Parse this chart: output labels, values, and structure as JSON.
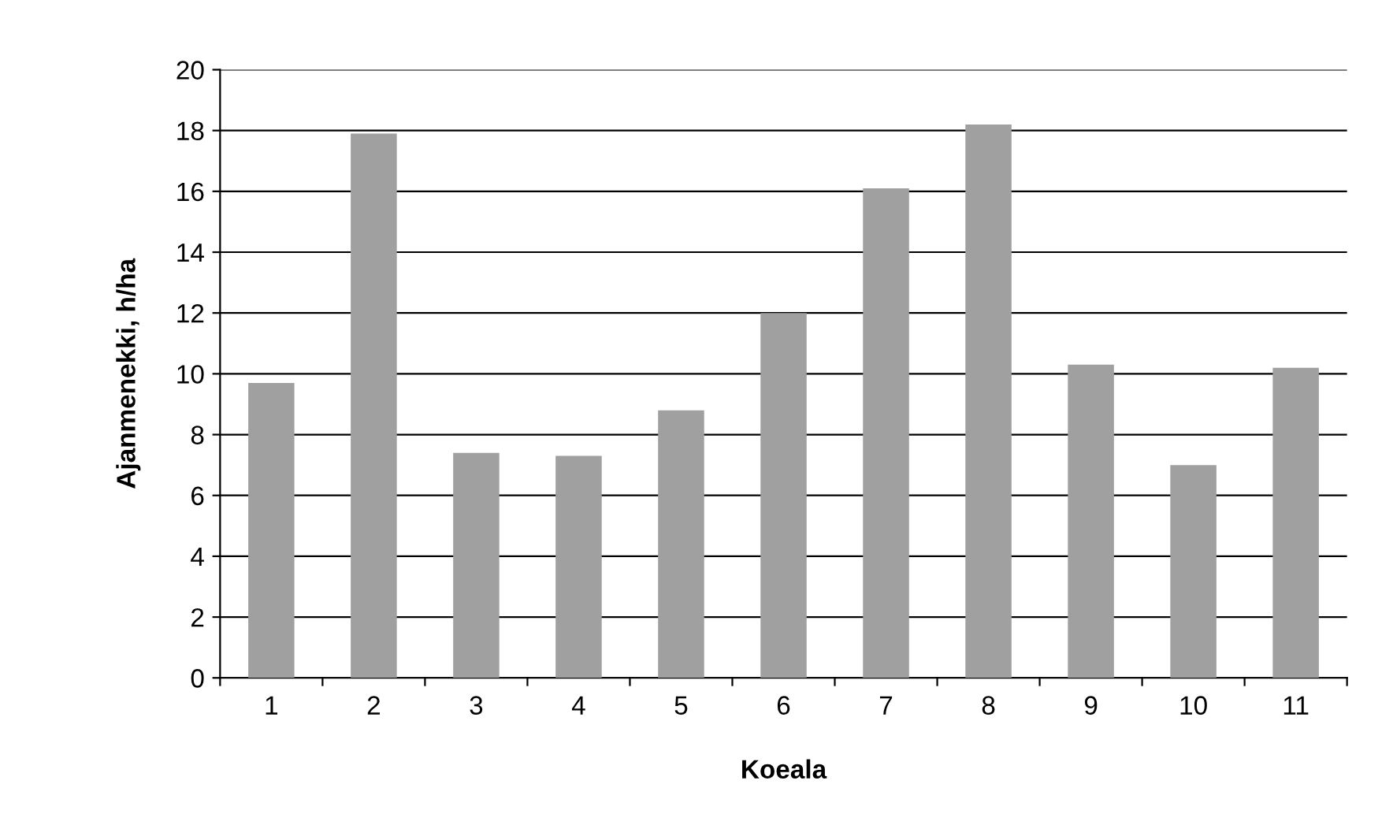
{
  "chart_data": {
    "type": "bar",
    "xlabel": "Koeala",
    "ylabel": "Ajanmenekki, h/ha",
    "categories": [
      "1",
      "2",
      "3",
      "4",
      "5",
      "6",
      "7",
      "8",
      "9",
      "10",
      "11"
    ],
    "values": [
      9.7,
      17.9,
      7.4,
      7.3,
      8.8,
      12.0,
      16.1,
      18.2,
      10.3,
      7.0,
      10.2
    ],
    "color": "#a0a0a0",
    "ylim": [
      0,
      20
    ],
    "yticks": [
      0,
      2,
      4,
      6,
      8,
      10,
      12,
      14,
      16,
      18,
      20
    ],
    "grid": "y",
    "legend": false
  }
}
